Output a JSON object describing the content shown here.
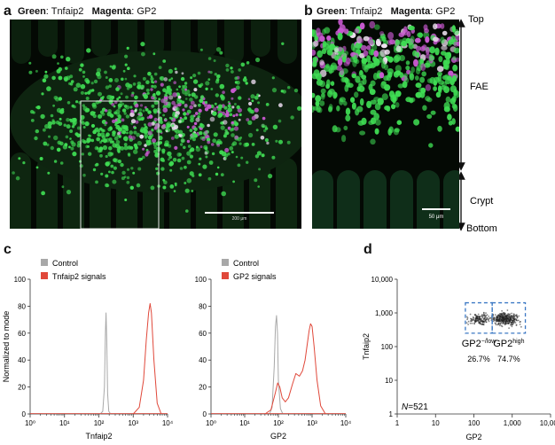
{
  "panels": {
    "a": {
      "letter": "a",
      "channels": [
        {
          "label": "Green",
          "marker": "Tnfaip2"
        },
        {
          "label": "Magenta",
          "marker": "GP2"
        }
      ],
      "scalebar_label": "200 μm"
    },
    "b": {
      "letter": "b",
      "channels": [
        {
          "label": "Green",
          "marker": "Tnfaip2"
        },
        {
          "label": "Magenta",
          "marker": "GP2"
        }
      ],
      "scalebar_label": "50 μm",
      "orientation": {
        "top": "Top",
        "fae": "FAE",
        "crypt": "Crypt",
        "bottom": "Bottom"
      }
    },
    "c": {
      "letter": "c"
    },
    "d": {
      "letter": "d"
    }
  },
  "colors": {
    "control": "#a8a8a8",
    "signal": "#e0483a",
    "gate": "#3b78c4",
    "green": "#3fdc53",
    "magenta": "#c85ad0"
  },
  "chart_data": [
    {
      "type": "line",
      "xlabel": "Tnfaip2",
      "ylabel": "Normalized to mode",
      "xscale": "log",
      "xlim": [
        1,
        10000
      ],
      "ylim": [
        0,
        100
      ],
      "xticks": [
        "10⁰",
        "10¹",
        "10²",
        "10³",
        "10⁴"
      ],
      "yticks": [
        "0",
        "20",
        "40",
        "60",
        "80",
        "100"
      ],
      "legend": [
        "Control",
        "Tnfaip2 signals"
      ],
      "series": [
        {
          "name": "Control",
          "color": "#a8a8a8",
          "x": [
            110,
            130,
            145,
            155,
            162,
            170,
            180,
            195,
            220
          ],
          "y": [
            0,
            2,
            20,
            60,
            75,
            55,
            15,
            2,
            0
          ]
        },
        {
          "name": "Tnfaip2 signals",
          "color": "#e0483a",
          "x": [
            1000,
            1500,
            2000,
            2400,
            2800,
            3100,
            3400,
            4000,
            5000,
            6500
          ],
          "y": [
            0,
            5,
            25,
            55,
            75,
            82,
            75,
            40,
            8,
            0
          ]
        }
      ]
    },
    {
      "type": "line",
      "xlabel": "GP2",
      "ylabel": "",
      "xscale": "log",
      "xlim": [
        1,
        10000
      ],
      "ylim": [
        0,
        100
      ],
      "xticks": [
        "10⁰",
        "10¹",
        "10²",
        "10³",
        "10⁴"
      ],
      "yticks": [
        "0",
        "20",
        "40",
        "60",
        "80",
        "100"
      ],
      "legend": [
        "Control",
        "GP2 signals"
      ],
      "series": [
        {
          "name": "Control",
          "color": "#a8a8a8",
          "x": [
            55,
            65,
            75,
            82,
            88,
            94,
            100,
            115,
            135
          ],
          "y": [
            0,
            5,
            35,
            65,
            73,
            60,
            25,
            4,
            0
          ]
        },
        {
          "name": "GP2 signals",
          "color": "#e0483a",
          "x": [
            40,
            60,
            80,
            95,
            110,
            130,
            160,
            200,
            260,
            330,
            420,
            520,
            620,
            720,
            820,
            900,
            1000,
            1150,
            1400,
            1800,
            2500
          ],
          "y": [
            0,
            3,
            15,
            23,
            20,
            12,
            9,
            12,
            22,
            30,
            28,
            32,
            40,
            52,
            62,
            67,
            65,
            50,
            25,
            6,
            0
          ]
        }
      ]
    },
    {
      "type": "scatter",
      "xlabel": "GP2",
      "ylabel": "Tnfaip2",
      "xscale": "log",
      "yscale": "log",
      "xlim": [
        1,
        10000
      ],
      "ylim": [
        1,
        10000
      ],
      "xticks": [
        "1",
        "10",
        "100",
        "1,000",
        "10,000"
      ],
      "yticks": [
        "1",
        "10",
        "100",
        "1,000",
        "10,000"
      ],
      "n_label": "=521",
      "n_symbol": "N",
      "gates": [
        {
          "name": "GP2",
          "superscript": "−/low",
          "percent": "26.7%",
          "xrange": [
            60,
            300
          ],
          "yrange": [
            250,
            2000
          ]
        },
        {
          "name": "GP2",
          "superscript": "high",
          "percent": "74.7%",
          "xrange": [
            300,
            2200
          ],
          "yrange": [
            250,
            2000
          ]
        }
      ]
    }
  ]
}
